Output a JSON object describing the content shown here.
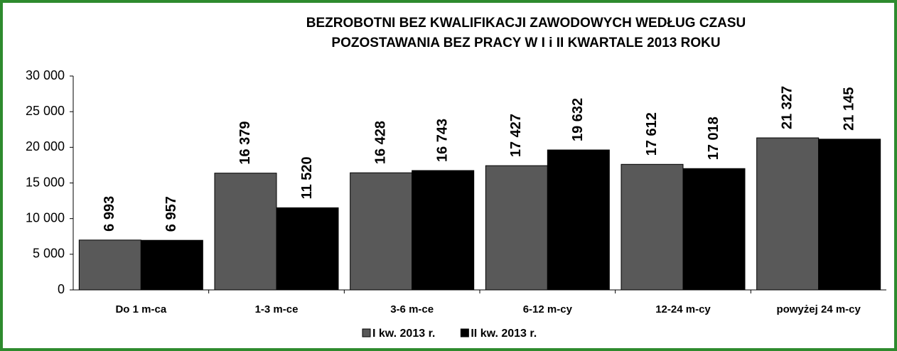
{
  "chart_data": {
    "type": "bar",
    "title": [
      "BEZROBOTNI BEZ KWALIFIKACJI ZAWODOWYCH  WEDŁUG  CZASU",
      "POZOSTAWANIA  BEZ PRACY W  I i II KWARTALE 2013 ROKU"
    ],
    "categories": [
      "Do 1 m-ca",
      "1-3 m-ce",
      "3-6 m-ce",
      "6-12 m-cy",
      "12-24 m-cy",
      "powyżej 24 m-cy"
    ],
    "series": [
      {
        "name": "I kw. 2013 r.",
        "color": "#595959",
        "values": [
          6993,
          16379,
          16428,
          17427,
          17612,
          21327
        ],
        "value_labels": [
          "6 993",
          "16 379",
          "16 428",
          "17 427",
          "17 612",
          "21 327"
        ]
      },
      {
        "name": "II kw. 2013 r.",
        "color": "#000000",
        "values": [
          6957,
          11520,
          16743,
          19632,
          17018,
          21145
        ],
        "value_labels": [
          "6 957",
          "11 520",
          "16 743",
          "19 632",
          "17 018",
          "21 145"
        ]
      }
    ],
    "ylim": [
      0,
      30000
    ],
    "yticks": [
      0,
      {
        "value": 5000,
        "label": "5 000"
      },
      {
        "value": 10000,
        "label": "10 000"
      },
      {
        "value": 15000,
        "label": "15 000"
      },
      {
        "value": 20000,
        "label": "20 000"
      },
      {
        "value": 25000,
        "label": "25 000"
      },
      {
        "value": 30000,
        "label": "30 000"
      }
    ],
    "grid": false
  }
}
